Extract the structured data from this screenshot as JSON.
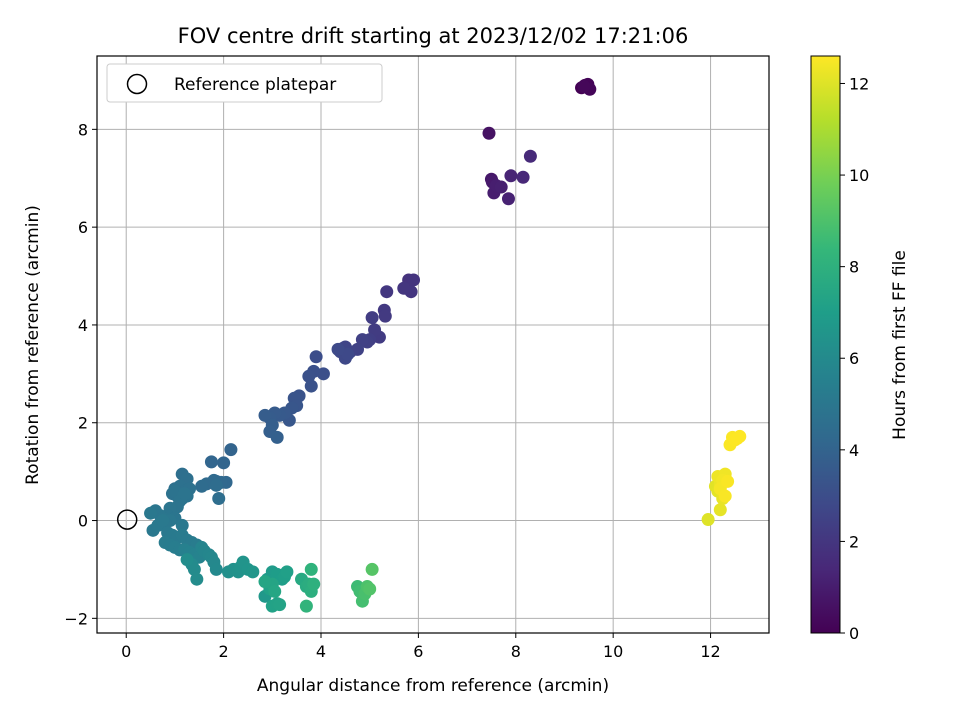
{
  "chart_data": {
    "type": "scatter",
    "title": "FOV centre drift starting at 2023/12/02 17:21:06",
    "xlabel": "Angular distance from reference (arcmin)",
    "ylabel": "Rotation from reference (arcmin)",
    "xlim": [
      -0.6,
      13.2
    ],
    "ylim": [
      -2.3,
      9.5
    ],
    "xticks": [
      0,
      2,
      4,
      6,
      8,
      10,
      12
    ],
    "yticks": [
      -2,
      0,
      2,
      4,
      6,
      8
    ],
    "xtick_labels": [
      "0",
      "2",
      "4",
      "6",
      "8",
      "10",
      "12"
    ],
    "ytick_labels": [
      "−2",
      "0",
      "2",
      "4",
      "6",
      "8"
    ],
    "grid": true,
    "legend": {
      "placement": "top-left",
      "entries": [
        "Reference platepar"
      ]
    },
    "reference_point": {
      "x": 0,
      "y": 0,
      "marker": "hollow-circle"
    },
    "colorbar": {
      "label": "Hours from first FF file",
      "colormap": "viridis",
      "range": [
        0,
        12.6
      ],
      "ticks": [
        0,
        2,
        4,
        6,
        8,
        10,
        12
      ],
      "tick_labels": [
        "0",
        "2",
        "4",
        "6",
        "8",
        "10",
        "12"
      ]
    },
    "colormap_stops": [
      "#440154",
      "#482878",
      "#3e4989",
      "#31688e",
      "#26828e",
      "#1f9e89",
      "#35b779",
      "#6ece58",
      "#b5de2b",
      "#fde725"
    ],
    "series": [
      {
        "x": [
          9.35,
          9.42,
          9.48,
          9.52,
          9.4
        ],
        "y": [
          8.85,
          8.9,
          8.92,
          8.82,
          8.88
        ],
        "hours": [
          0.0,
          0.05,
          0.1,
          0.15,
          0.2
        ]
      },
      {
        "x": [
          7.45,
          7.5,
          7.52,
          7.55,
          7.6,
          7.7,
          7.85,
          7.9,
          8.15,
          8.3
        ],
        "y": [
          7.92,
          6.98,
          6.92,
          6.7,
          6.85,
          6.82,
          6.58,
          7.05,
          7.02,
          7.45
        ],
        "hours": [
          0.6,
          0.8,
          0.9,
          1.0,
          1.05,
          1.1,
          1.2,
          1.3,
          1.4,
          1.5
        ]
      },
      {
        "x": [
          5.75,
          5.8,
          5.9,
          5.85,
          5.7,
          5.35,
          5.3,
          5.32,
          5.2,
          5.1,
          5.05,
          5.0,
          4.95,
          4.85,
          4.75,
          4.6,
          4.5,
          4.45,
          4.4,
          4.5,
          4.55,
          4.35
        ],
        "y": [
          4.75,
          4.92,
          4.92,
          4.68,
          4.75,
          4.68,
          4.3,
          4.18,
          3.75,
          3.9,
          4.15,
          3.7,
          3.65,
          3.7,
          3.5,
          3.45,
          3.55,
          3.52,
          3.45,
          3.32,
          3.4,
          3.5
        ],
        "hours": [
          1.8,
          1.85,
          1.9,
          1.95,
          2.0,
          2.05,
          2.1,
          2.15,
          2.2,
          2.25,
          2.3,
          2.35,
          2.4,
          2.45,
          2.5,
          2.55,
          2.6,
          2.65,
          2.7,
          2.75,
          2.8,
          2.85
        ]
      },
      {
        "x": [
          3.9,
          4.05,
          3.85,
          3.75,
          3.8,
          3.55,
          3.45,
          3.5,
          3.4,
          3.35,
          3.25,
          3.15,
          3.05,
          2.95,
          2.85,
          3.0,
          2.95,
          3.1
        ],
        "y": [
          3.35,
          3.0,
          3.05,
          2.95,
          2.75,
          2.55,
          2.5,
          2.35,
          2.3,
          2.05,
          2.2,
          2.15,
          2.2,
          2.1,
          2.15,
          1.95,
          1.82,
          1.7
        ],
        "hours": [
          3.0,
          3.05,
          3.1,
          3.15,
          3.2,
          3.25,
          3.3,
          3.35,
          3.4,
          3.45,
          3.5,
          3.55,
          3.6,
          3.65,
          3.7,
          3.75,
          3.8,
          3.85
        ]
      },
      {
        "x": [
          2.15,
          2.0,
          1.75,
          1.85,
          2.05,
          1.95,
          1.8,
          1.65,
          1.55,
          1.85,
          1.9
        ],
        "y": [
          1.45,
          1.18,
          1.2,
          0.8,
          0.78,
          0.78,
          0.82,
          0.75,
          0.7,
          0.72,
          0.45
        ],
        "hours": [
          4.0,
          4.05,
          4.1,
          4.15,
          4.2,
          4.25,
          4.3,
          4.35,
          4.4,
          4.45,
          4.5
        ]
      },
      {
        "x": [
          1.15,
          1.25,
          1.0,
          1.1,
          1.2,
          1.3,
          0.95,
          1.05,
          1.15,
          1.25,
          1.0,
          1.1,
          1.2,
          1.05,
          0.9,
          0.85,
          1.0,
          0.6,
          0.7,
          0.75,
          0.9,
          0.8,
          1.15,
          0.5,
          0.55,
          0.65,
          0.75,
          0.85,
          0.95,
          1.05,
          1.15,
          1.25,
          1.35,
          1.45,
          0.8,
          0.9,
          1.0,
          1.1
        ],
        "y": [
          0.95,
          0.85,
          0.65,
          0.7,
          0.6,
          0.65,
          0.55,
          0.5,
          0.45,
          0.5,
          0.6,
          0.4,
          0.55,
          0.28,
          0.25,
          0.1,
          0.05,
          0.2,
          0.1,
          0.05,
          0.0,
          -0.05,
          -0.1,
          0.15,
          -0.2,
          -0.1,
          0.0,
          -0.25,
          -0.3,
          -0.35,
          -0.3,
          -0.4,
          -0.45,
          -0.5,
          -0.45,
          -0.5,
          -0.55,
          -0.6
        ],
        "hours": [
          4.6,
          4.62,
          4.64,
          4.66,
          4.68,
          4.7,
          4.72,
          4.74,
          4.76,
          4.78,
          4.8,
          4.82,
          4.84,
          4.86,
          4.88,
          4.9,
          4.92,
          4.94,
          4.96,
          4.98,
          5.0,
          5.02,
          5.04,
          5.06,
          5.08,
          5.1,
          5.12,
          5.14,
          5.16,
          5.18,
          5.2,
          5.22,
          5.24,
          5.26,
          5.28,
          5.3,
          5.32,
          5.34
        ]
      },
      {
        "x": [
          1.2,
          1.3,
          1.4,
          1.5,
          1.55,
          1.6,
          1.7,
          1.75,
          1.8,
          1.85,
          1.35,
          1.4,
          1.45,
          1.25
        ],
        "y": [
          -0.6,
          -0.65,
          -0.7,
          -0.75,
          -0.55,
          -0.62,
          -0.7,
          -0.75,
          -0.85,
          -1.0,
          -0.9,
          -1.0,
          -1.2,
          -0.8
        ],
        "hours": [
          5.5,
          5.55,
          5.6,
          5.65,
          5.7,
          5.75,
          5.8,
          5.85,
          5.9,
          5.95,
          6.0,
          6.05,
          6.1,
          6.15
        ]
      },
      {
        "x": [
          2.1,
          2.2,
          2.3,
          2.35,
          2.4,
          2.5,
          2.6,
          2.85,
          2.9,
          2.95,
          3.0,
          3.05,
          3.1,
          3.2,
          3.25,
          3.3,
          2.95,
          3.0,
          3.1,
          3.15,
          3.0,
          2.85,
          3.05
        ],
        "y": [
          -1.05,
          -1.0,
          -1.05,
          -0.95,
          -0.85,
          -1.0,
          -1.05,
          -1.55,
          -1.2,
          -1.35,
          -1.05,
          -1.2,
          -1.1,
          -1.2,
          -1.15,
          -1.05,
          -1.4,
          -1.75,
          -1.7,
          -1.72,
          -1.3,
          -1.25,
          -1.45
        ],
        "hours": [
          6.3,
          6.35,
          6.4,
          6.45,
          6.5,
          6.55,
          6.6,
          6.7,
          6.75,
          6.8,
          6.85,
          6.9,
          6.95,
          7.0,
          7.05,
          7.1,
          7.15,
          7.2,
          7.25,
          7.3,
          7.35,
          7.4,
          7.45
        ]
      },
      {
        "x": [
          3.6,
          3.7,
          3.75,
          3.8,
          3.85,
          3.8,
          3.7
        ],
        "y": [
          -1.2,
          -1.35,
          -1.3,
          -1.45,
          -1.3,
          -1.0,
          -1.75
        ],
        "hours": [
          7.6,
          7.7,
          7.8,
          7.9,
          8.0,
          8.1,
          8.2
        ]
      },
      {
        "x": [
          4.75,
          4.8,
          4.85,
          4.9,
          4.95,
          5.0,
          5.05
        ],
        "y": [
          -1.35,
          -1.45,
          -1.65,
          -1.5,
          -1.35,
          -1.4,
          -1.0
        ],
        "hours": [
          8.6,
          8.7,
          8.8,
          8.9,
          9.0,
          9.1,
          9.2
        ]
      },
      {
        "x": [
          11.95,
          12.1,
          12.15,
          12.2,
          12.25,
          12.2,
          12.15,
          12.3,
          12.25,
          12.2,
          12.3,
          12.35,
          12.4,
          12.45,
          12.5,
          12.6,
          12.55
        ],
        "y": [
          0.02,
          0.7,
          0.6,
          0.22,
          0.45,
          0.75,
          0.9,
          0.95,
          0.82,
          0.65,
          0.5,
          0.8,
          1.55,
          1.7,
          1.65,
          1.72,
          1.68
        ],
        "hours": [
          12.0,
          12.05,
          12.1,
          12.15,
          12.2,
          12.25,
          12.3,
          12.35,
          12.4,
          12.45,
          12.5,
          12.52,
          12.54,
          12.56,
          12.58,
          12.6,
          12.62
        ]
      }
    ]
  }
}
